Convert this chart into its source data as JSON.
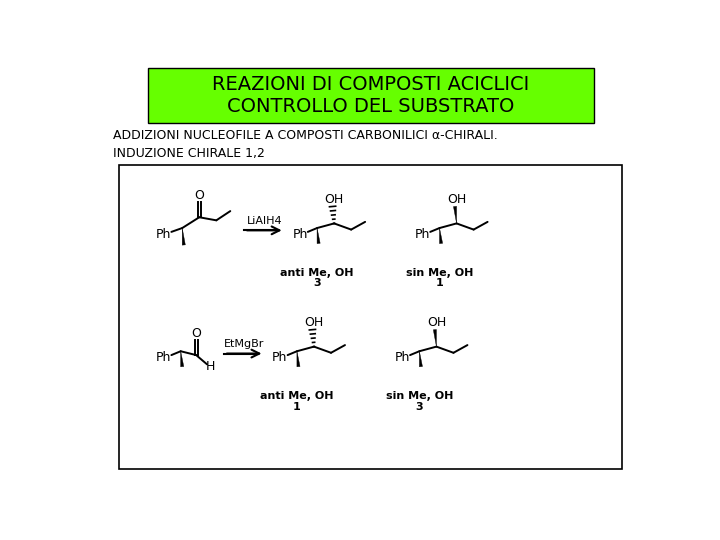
{
  "title_line1": "REAZIONI DI COMPOSTI ACICLICI",
  "title_line2": "CONTROLLO DEL SUBSTRATO",
  "title_bg": "#66ff00",
  "title_text_color": "#000000",
  "subtitle": "ADDIZIONI NUCLEOFILE A COMPOSTI CARBONILICI α-CHIRALI.",
  "subheading": "INDUZIONE CHIRALE 1,2",
  "bg_color": "#ffffff",
  "box_color": "#ffffff",
  "box_border": "#000000",
  "reaction1_reagent": "LiAlH4",
  "reaction1_product1_label": "anti Me, OH",
  "reaction1_product1_num": "3",
  "reaction1_product2_label": "sin Me, OH",
  "reaction1_product2_num": "1",
  "reaction2_reagent": "EtMgBr",
  "reaction2_product1_label": "anti Me, OH",
  "reaction2_product1_num": "1",
  "reaction2_product2_label": "sin Me, OH",
  "reaction2_product2_num": "3",
  "title_fontsize": 14,
  "subtitle_fontsize": 9,
  "subheading_fontsize": 9
}
